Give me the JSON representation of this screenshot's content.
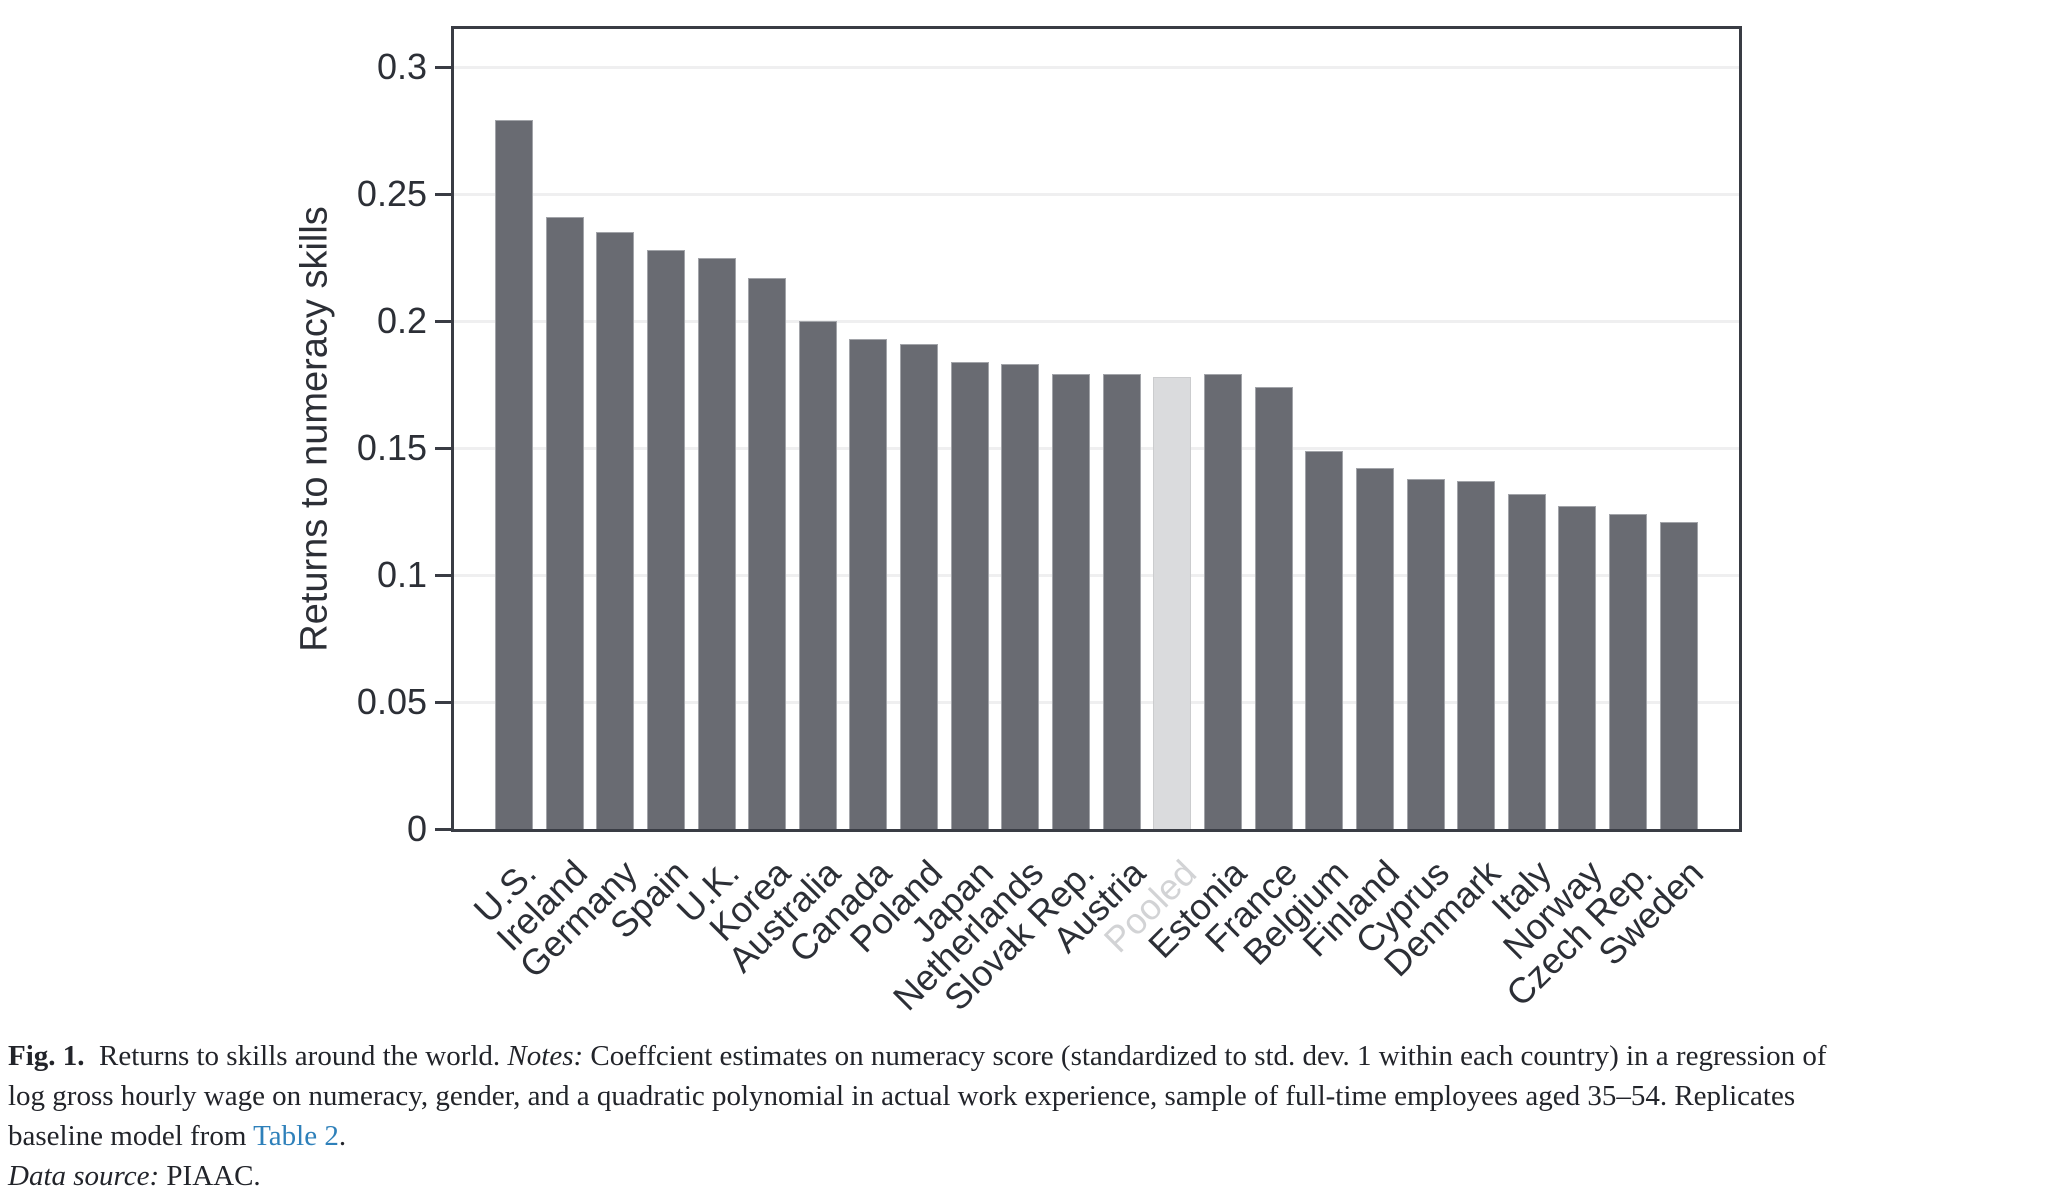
{
  "chart_data": {
    "type": "bar",
    "title": "",
    "xlabel": "",
    "ylabel": "Returns to numeracy skills",
    "ylim": [
      0,
      0.315
    ],
    "grid": "horizontal-light",
    "legend": "none",
    "bar_color": "#696b72",
    "highlight_color": "#dadbdd",
    "highlight_category": "Pooled",
    "yticks": [
      {
        "value": 0,
        "label": "0"
      },
      {
        "value": 0.05,
        "label": "0.05"
      },
      {
        "value": 0.1,
        "label": "0.1"
      },
      {
        "value": 0.15,
        "label": "0.15"
      },
      {
        "value": 0.2,
        "label": "0.2"
      },
      {
        "value": 0.25,
        "label": "0.25"
      },
      {
        "value": 0.3,
        "label": "0.3"
      }
    ],
    "categories": [
      "U.S.",
      "Ireland",
      "Germany",
      "Spain",
      "U.K.",
      "Korea",
      "Australia",
      "Canada",
      "Poland",
      "Japan",
      "Netherlands",
      "Slovak Rep.",
      "Austria",
      "Pooled",
      "Estonia",
      "France",
      "Belgium",
      "Finland",
      "Cyprus",
      "Denmark",
      "Italy",
      "Norway",
      "Czech Rep.",
      "Sweden"
    ],
    "values": [
      0.279,
      0.241,
      0.235,
      0.228,
      0.225,
      0.217,
      0.2,
      0.193,
      0.191,
      0.184,
      0.183,
      0.179,
      0.179,
      0.178,
      0.179,
      0.174,
      0.149,
      0.142,
      0.138,
      0.137,
      0.132,
      0.127,
      0.124,
      0.121
    ]
  },
  "caption": {
    "lines": [
      [
        {
          "name": "caption-fig-label",
          "text": "Fig. 1.",
          "style": "bold",
          "interactable": false
        },
        {
          "name": "caption-text",
          "text": "  Returns to skills around the world. ",
          "style": "normal",
          "interactable": false
        },
        {
          "name": "caption-notes-label",
          "text": "Notes:",
          "style": "italic",
          "interactable": false
        },
        {
          "name": "caption-text",
          "text": " Coeffcient estimates on numeracy score (standardized to std. dev. 1 within each country) in a regression of",
          "style": "normal",
          "interactable": false
        }
      ],
      [
        {
          "name": "caption-text",
          "text": "log gross hourly wage on numeracy, gender, and a quadratic polynomial in actual work experience, sample of full-time employees aged 35–54. Replicates",
          "style": "normal",
          "interactable": false
        }
      ],
      [
        {
          "name": "caption-text",
          "text": "baseline model from ",
          "style": "normal",
          "interactable": false
        },
        {
          "name": "table-2-link",
          "text": "Table 2",
          "style": "link",
          "interactable": true
        },
        {
          "name": "caption-text",
          "text": ".",
          "style": "normal",
          "interactable": false
        }
      ],
      [
        {
          "name": "caption-source-label",
          "text": "Data source:",
          "style": "italic",
          "interactable": false
        },
        {
          "name": "caption-text",
          "text": " PIAAC.",
          "style": "normal",
          "interactable": false
        }
      ]
    ]
  }
}
